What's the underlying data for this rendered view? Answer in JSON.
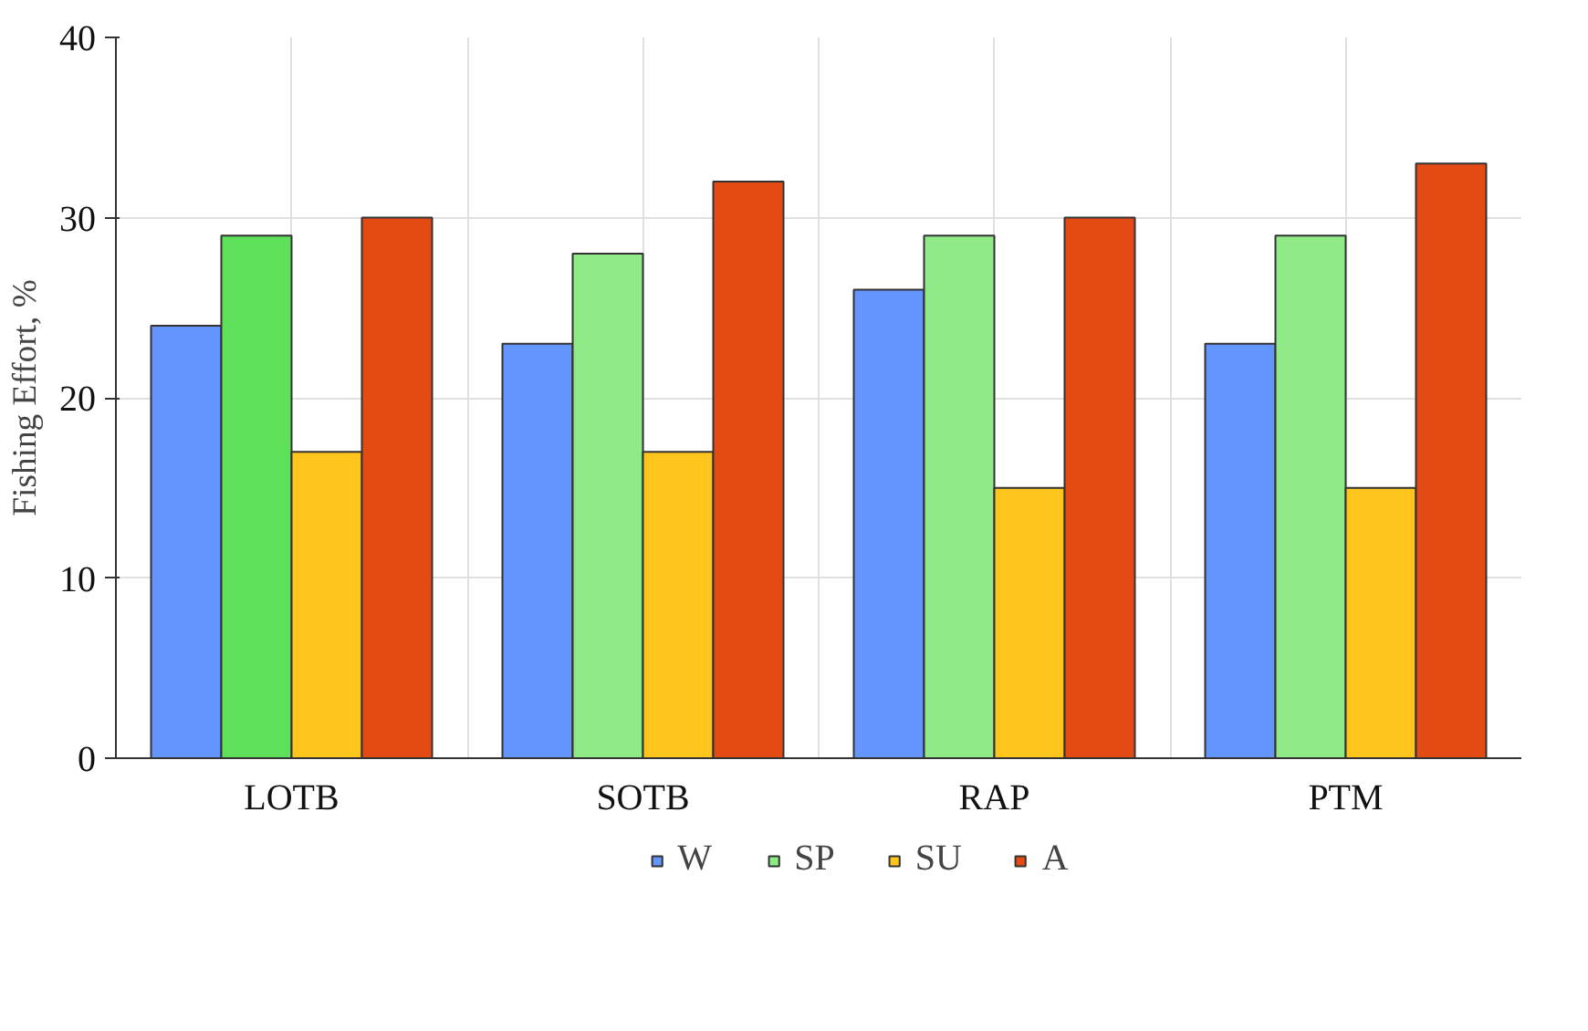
{
  "chart_data": {
    "type": "bar",
    "ylabel": "Fishing Effort, %",
    "categories": [
      "LOTB",
      "SOTB",
      "RAP",
      "PTM"
    ],
    "series": [
      {
        "name": "W",
        "color": "#6495fd",
        "values": [
          24,
          23,
          26,
          23
        ]
      },
      {
        "name": "SP",
        "color": "#90ea88",
        "colors": [
          "#5ee05a",
          "#90ea88",
          "#90ea88",
          "#90ea88"
        ],
        "values": [
          29,
          28,
          29,
          29
        ]
      },
      {
        "name": "SU",
        "color": "#fec51c",
        "values": [
          17,
          17,
          15,
          15
        ]
      },
      {
        "name": "A",
        "color": "#e44a14",
        "values": [
          30,
          32,
          30,
          33
        ]
      }
    ],
    "ylim": [
      0,
      40
    ],
    "yticks": [
      0,
      10,
      20,
      30,
      40
    ],
    "grid": true,
    "legend": "bottom"
  }
}
